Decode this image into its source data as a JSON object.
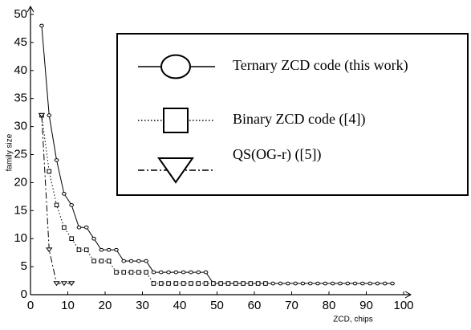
{
  "chart_data": {
    "type": "line",
    "xlabel": "ZCD, chips",
    "ylabel": "family size",
    "xlim": [
      0,
      100
    ],
    "xticks": [
      0,
      10,
      20,
      30,
      40,
      50,
      60,
      70,
      80,
      90,
      100
    ],
    "ylim": [
      0,
      50
    ],
    "yticks": [
      0,
      5,
      10,
      15,
      20,
      25,
      30,
      35,
      40,
      45,
      50
    ],
    "series": [
      {
        "name": "Ternary ZCD code (this work)",
        "color": "#000000",
        "marker": "circle",
        "line_style": "solid",
        "x": [
          3,
          5,
          7,
          9,
          11,
          13,
          15,
          17,
          19,
          21,
          23,
          25,
          27,
          29,
          31,
          33,
          35,
          37,
          39,
          41,
          43,
          45,
          47,
          49,
          51,
          53,
          55,
          57,
          59,
          61,
          63,
          65,
          67,
          69,
          71,
          73,
          75,
          77,
          79,
          81,
          83,
          85,
          87,
          89,
          91,
          93,
          95,
          97
        ],
        "values": [
          48,
          32,
          24,
          18,
          16,
          12,
          12,
          10,
          8,
          8,
          8,
          6,
          6,
          6,
          6,
          4,
          4,
          4,
          4,
          4,
          4,
          4,
          4,
          2,
          2,
          2,
          2,
          2,
          2,
          2,
          2,
          2,
          2,
          2,
          2,
          2,
          2,
          2,
          2,
          2,
          2,
          2,
          2,
          2,
          2,
          2,
          2,
          2
        ]
      },
      {
        "name": "Binary   ZCD code ([4])",
        "color": "#000000",
        "marker": "square",
        "line_style": "dotted",
        "x": [
          3,
          5,
          7,
          9,
          11,
          13,
          15,
          17,
          19,
          21,
          23,
          25,
          27,
          29,
          31,
          33,
          35,
          37,
          39,
          41,
          43,
          45,
          47,
          49,
          51,
          53,
          55,
          57,
          59,
          61,
          63
        ],
        "values": [
          32,
          22,
          16,
          12,
          10,
          8,
          8,
          6,
          6,
          6,
          4,
          4,
          4,
          4,
          4,
          2,
          2,
          2,
          2,
          2,
          2,
          2,
          2,
          2,
          2,
          2,
          2,
          2,
          2,
          2,
          2
        ]
      },
      {
        "name": "QS(OG-r) ([5])",
        "color": "#000000",
        "marker": "triangle",
        "line_style": "dashdot",
        "x": [
          3,
          5,
          7,
          9,
          11
        ],
        "values": [
          32,
          8,
          2,
          2,
          2
        ]
      }
    ]
  }
}
